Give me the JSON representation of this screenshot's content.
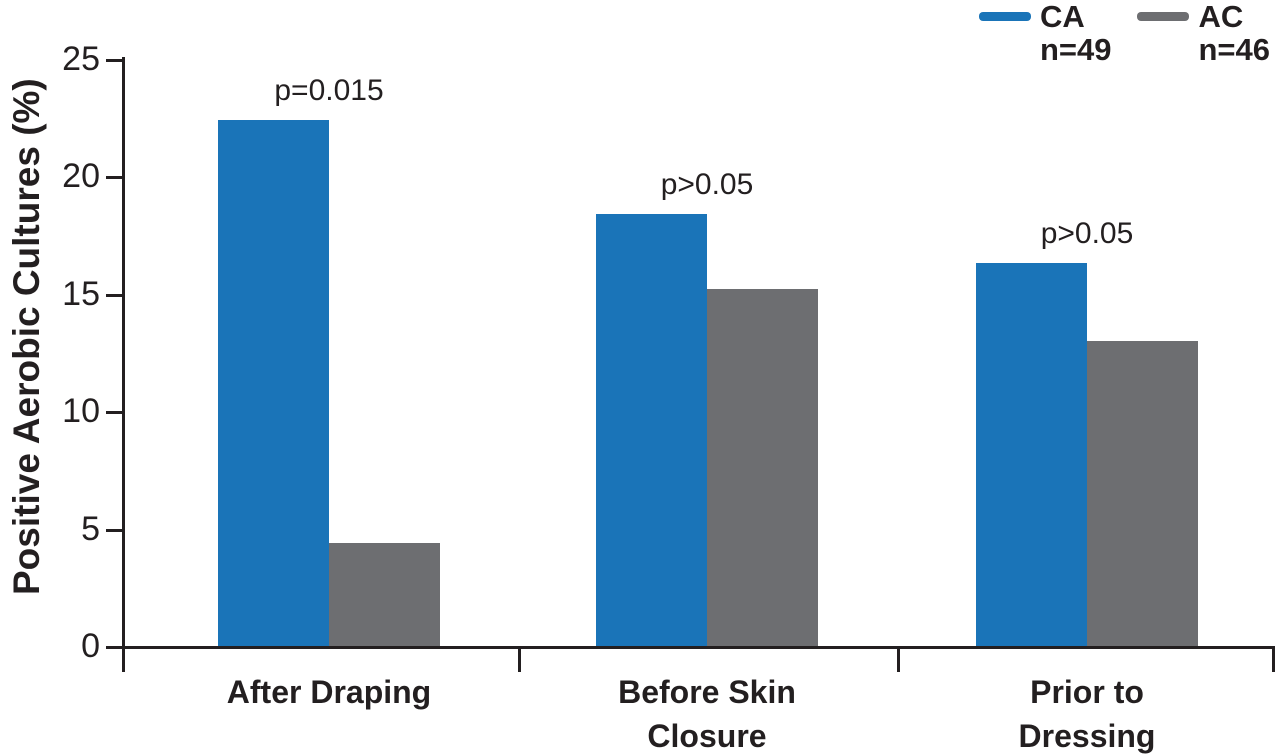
{
  "chart_data": {
    "type": "bar",
    "title": "",
    "ylabel": "Positive Aerobic Cultures (%)",
    "xlabel": "",
    "ylim": [
      0,
      25
    ],
    "yticks": [
      0,
      5,
      10,
      15,
      20,
      25
    ],
    "grid": false,
    "legend_position": "top-right",
    "categories": [
      {
        "lines": [
          "After Draping"
        ]
      },
      {
        "lines": [
          "Before Skin",
          "Closure"
        ]
      },
      {
        "lines": [
          "Prior to",
          "Dressing"
        ]
      }
    ],
    "series": [
      {
        "name": "CA",
        "sublabel": "n=49",
        "color": "#1a74b8",
        "values": [
          22.4,
          18.4,
          16.3
        ]
      },
      {
        "name": "AC",
        "sublabel": "n=46",
        "color": "#6d6e71",
        "values": [
          4.4,
          15.2,
          13.0
        ]
      }
    ],
    "annotations": [
      {
        "group": 0,
        "text": "p=0.015"
      },
      {
        "group": 1,
        "text": "p>0.05"
      },
      {
        "group": 2,
        "text": "p>0.05"
      }
    ]
  },
  "colors": {
    "axis": "#231f20",
    "text": "#231f20",
    "background": "#ffffff"
  }
}
